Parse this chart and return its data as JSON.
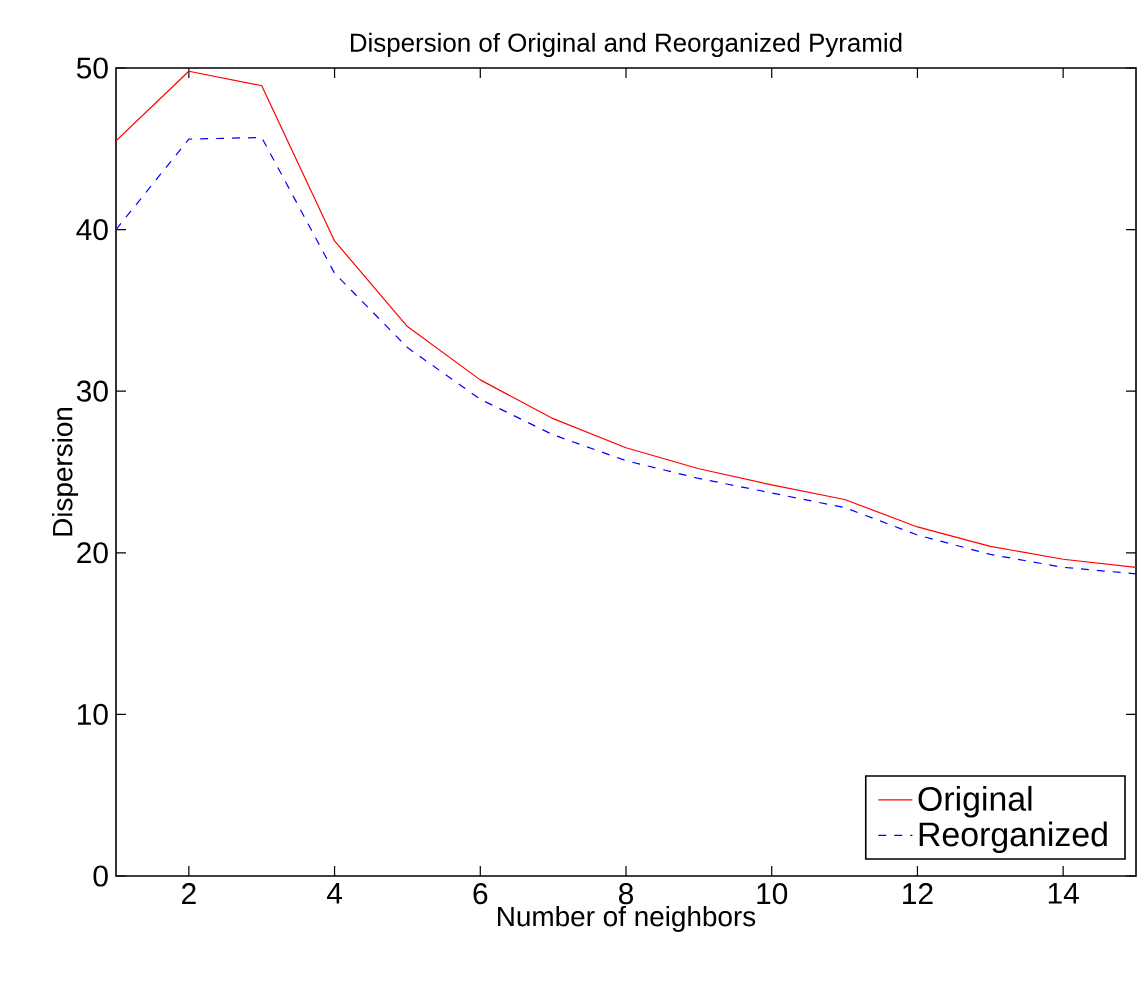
{
  "chart_data": {
    "type": "line",
    "title": "Dispersion of Original and Reorganized Pyramid",
    "xlabel": "Number of neighbors",
    "ylabel": "Dispersion",
    "x": [
      1,
      2,
      3,
      4,
      5,
      6,
      7,
      8,
      9,
      10,
      11,
      12,
      13,
      14,
      15
    ],
    "series": [
      {
        "name": "Original",
        "color": "#ff0000",
        "line_style": "solid",
        "values": [
          45.5,
          49.8,
          48.9,
          39.3,
          34.0,
          30.7,
          28.3,
          26.5,
          25.2,
          24.2,
          23.3,
          21.6,
          20.4,
          19.6,
          19.1
        ]
      },
      {
        "name": "Reorganized",
        "color": "#0000ff",
        "line_style": "dashed",
        "values": [
          40.0,
          45.6,
          45.7,
          37.3,
          32.7,
          29.5,
          27.3,
          25.7,
          24.6,
          23.7,
          22.8,
          21.1,
          19.9,
          19.1,
          18.7
        ]
      }
    ],
    "xlim": [
      1,
      15
    ],
    "ylim": [
      0,
      50
    ],
    "xticks": [
      2,
      4,
      6,
      8,
      10,
      12,
      14
    ],
    "yticks": [
      0,
      10,
      20,
      30,
      40,
      50
    ],
    "grid": false,
    "legend": "bottom right",
    "marker": "none"
  }
}
